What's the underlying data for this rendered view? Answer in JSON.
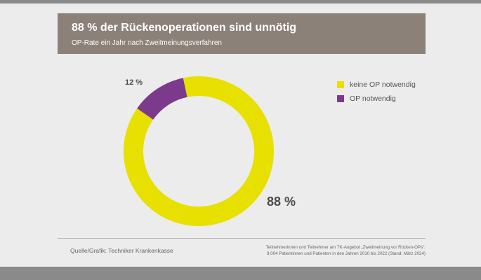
{
  "header": {
    "title": "88 % der Rückenoperationen sind unnötig",
    "subtitle": "OP-Rate ein Jahr nach Zweitmeinungsverfahren"
  },
  "chart_data": {
    "type": "pie",
    "categories": [
      "keine OP notwendig",
      "OP notwendig"
    ],
    "values": [
      88,
      12
    ],
    "data_labels": [
      "88 %",
      "12 %"
    ],
    "colors": [
      "#e8e000",
      "#7b3a8c"
    ],
    "legend_position": "right"
  },
  "legend": [
    {
      "label": "keine OP notwendig",
      "color": "#e8e000"
    },
    {
      "label": "OP notwendig",
      "color": "#7b3a8c"
    }
  ],
  "footer": {
    "source": "Quelle/Grafik: Techniker Krankenkasse",
    "note_line1": "Teilnehmerinnen und Teilnehmer am TK-Angebot „Zweitmeinung vor Rücken-OPs“:",
    "note_line2": "9.004 Patientinnen und Patienten in den Jahren 2010 bis 2022 (Stand: März 2024)"
  }
}
